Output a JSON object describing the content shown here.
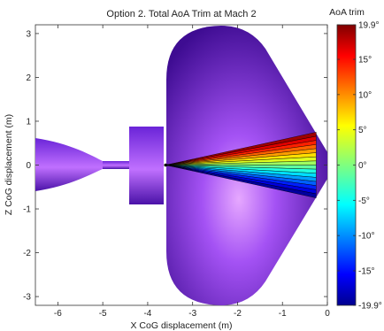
{
  "chart_data": {
    "type": "heatmap",
    "title": "Option 2. Total AoA Trim at Mach 2",
    "xlabel": "X CoG displacement (m)",
    "ylabel": "Z CoG displacement (m)",
    "xlim": [
      -6.5,
      0
    ],
    "ylim": [
      -3.2,
      3.2
    ],
    "x_ticks": [
      "-6",
      "-5",
      "-4",
      "-3",
      "-2",
      "-1",
      "0"
    ],
    "y_ticks": [
      "3",
      "2",
      "1",
      "0",
      "-1",
      "-2",
      "-3"
    ],
    "grid": false,
    "colorbar": {
      "title": "AoA trim",
      "min": -19.9,
      "max": 19.9,
      "ticks": [
        "19.9°",
        "15°",
        "10°",
        "5°",
        "0°",
        "-5°",
        "-10°",
        "-15°",
        "-19.9°"
      ],
      "colormap": "jet"
    },
    "body_color": "#8a3ff0",
    "trim_region": {
      "apex": [
        -3.6,
        0
      ],
      "x_end": -0.25,
      "z_top": 0.75,
      "z_bottom": -0.75,
      "aoa_top": 19.9,
      "aoa_bottom": -19.9
    }
  }
}
